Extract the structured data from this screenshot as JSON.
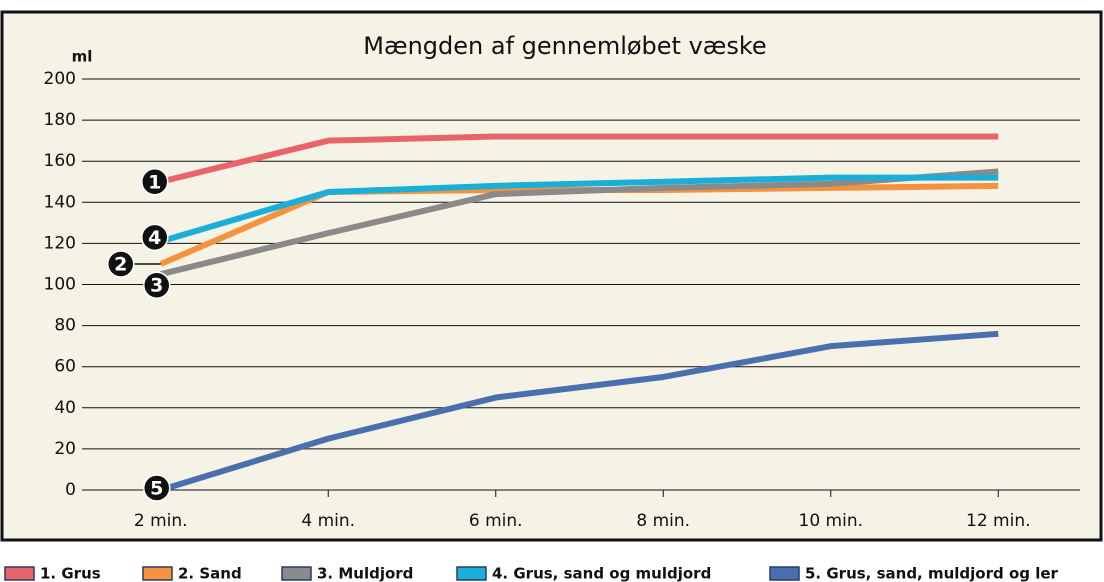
{
  "chart_data": {
    "type": "line",
    "title": "Mængden af gennemløbet væske",
    "y_label": "ml",
    "categories": [
      "2 min.",
      "4 min.",
      "6 min.",
      "8 min.",
      "10 min.",
      "12 min."
    ],
    "ylim": [
      0,
      200
    ],
    "yticks": [
      0,
      20,
      40,
      60,
      80,
      100,
      120,
      140,
      160,
      180,
      200
    ],
    "grid": true,
    "series": [
      {
        "name": "1. Grus",
        "marker": "1",
        "color": "#e8646a",
        "values": [
          150,
          170,
          172,
          172,
          172,
          172
        ]
      },
      {
        "name": "2. Sand",
        "marker": "2",
        "color": "#f5923e",
        "values": [
          110,
          145,
          146,
          146,
          147,
          148
        ]
      },
      {
        "name": "3. Muldjord",
        "marker": "3",
        "color": "#8a8a8a",
        "values": [
          105,
          125,
          144,
          147,
          149,
          155
        ]
      },
      {
        "name": "4. Grus, sand og muldjord",
        "marker": "4",
        "color": "#1aafd8",
        "values": [
          121,
          145,
          148,
          150,
          152,
          152
        ]
      },
      {
        "name": "5. Grus, sand, muldjord og ler",
        "marker": "5",
        "color": "#4a6fae",
        "values": [
          0,
          25,
          45,
          55,
          70,
          76
        ]
      }
    ]
  }
}
